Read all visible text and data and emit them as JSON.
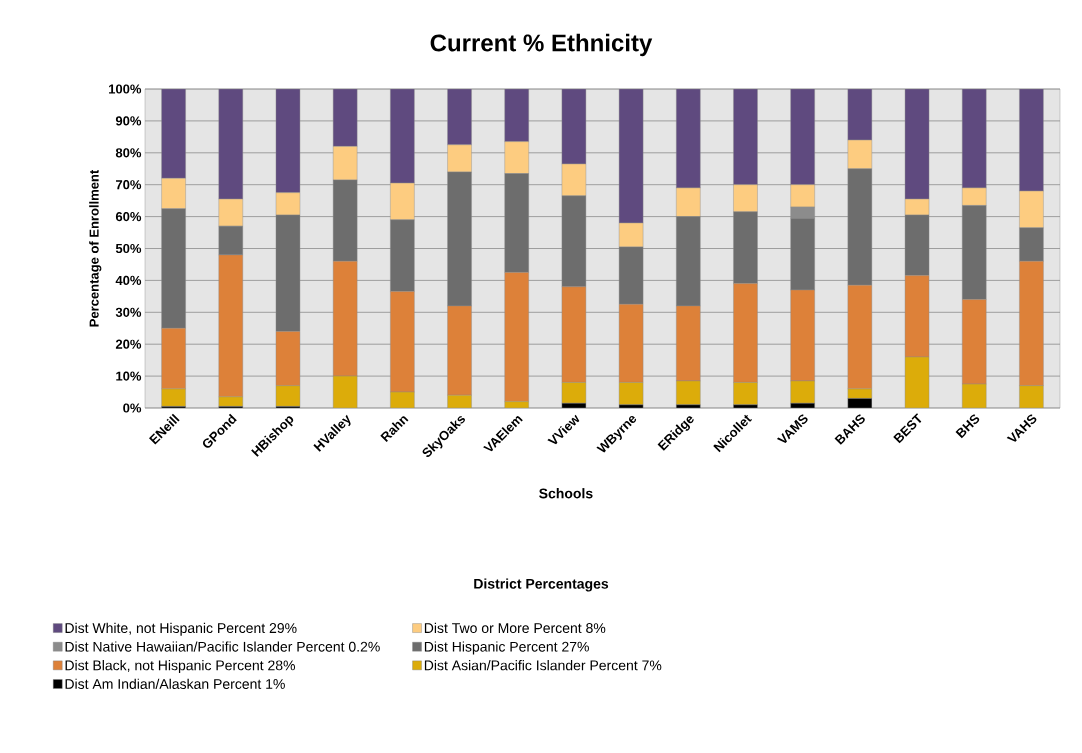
{
  "chart_data": {
    "type": "bar",
    "stacked": true,
    "title": "Current % Ethnicity",
    "xlabel": "Schools",
    "ylabel": "Percentage of Enrollment",
    "legend_title": "District Percentages",
    "categories": [
      "ENeill",
      "GPond",
      "HBishop",
      "HValley",
      "Rahn",
      "SkyOaks",
      "VAElem",
      "VView",
      "WByrne",
      "ERidge",
      "Nicollet",
      "VAMS",
      "BAHS",
      "BEST",
      "BHS",
      "VAHS"
    ],
    "series": [
      {
        "name": "Dist Am Indian/Alaskan Percent 1%",
        "color": "#000000",
        "values": [
          0.5,
          0.5,
          0.5,
          0,
          0,
          0,
          0,
          1.5,
          1,
          1,
          1,
          1.5,
          3,
          0,
          0,
          0
        ]
      },
      {
        "name": "Dist Asian/Pacific Islander Percent 7%",
        "color": "#dcac0a",
        "values": [
          5.5,
          3,
          6.5,
          10,
          5,
          4,
          2,
          6.5,
          7,
          7.5,
          7,
          7,
          3,
          16,
          7.5,
          7
        ]
      },
      {
        "name": "Dist Black, not Hispanic Percent 28%",
        "color": "#dd8139",
        "values": [
          19,
          44.5,
          17,
          36,
          31.5,
          28,
          40.5,
          30,
          24.5,
          23.5,
          31,
          28.5,
          32.5,
          25.5,
          26.5,
          39
        ]
      },
      {
        "name": "Dist Hispanic Percent 27%",
        "color": "#6d6d6d",
        "values": [
          37.5,
          9,
          36.5,
          25.5,
          22.5,
          42,
          31,
          28.5,
          18,
          28,
          22.5,
          22.5,
          36.5,
          19,
          29.5,
          10.5
        ]
      },
      {
        "name": "Dist Native Hawaiian/Pacific Islander Percent 0.2%",
        "color": "#8c8c8c",
        "values": [
          0,
          0,
          0,
          0,
          0,
          0,
          0,
          0,
          0,
          0,
          0,
          3.5,
          0,
          0,
          0,
          0
        ]
      },
      {
        "name": "Dist Two or More Percent 8%",
        "color": "#fdcc80",
        "values": [
          9.5,
          8.5,
          7,
          10.5,
          11.5,
          8.5,
          10,
          10,
          7.5,
          9,
          8.5,
          7,
          9,
          5,
          5.5,
          11.5
        ]
      },
      {
        "name": "Dist White, not Hispanic Percent 29%",
        "color": "#5f4a7f",
        "values": [
          28,
          34.5,
          32.5,
          18,
          29.5,
          17.5,
          16.5,
          23.5,
          42,
          31,
          30,
          30,
          16,
          34.5,
          31,
          32
        ]
      }
    ],
    "ylim": [
      0,
      100
    ],
    "yticks": [
      {
        "value": 0,
        "label": "0%"
      },
      {
        "value": 10,
        "label": "10%"
      },
      {
        "value": 20,
        "label": "20%"
      },
      {
        "value": 30,
        "label": "30%"
      },
      {
        "value": 40,
        "label": "40%"
      },
      {
        "value": 50,
        "label": "50%"
      },
      {
        "value": 60,
        "label": "60%"
      },
      {
        "value": 70,
        "label": "70%"
      },
      {
        "value": 80,
        "label": "80%"
      },
      {
        "value": 90,
        "label": "90%"
      },
      {
        "value": 100,
        "label": "100%"
      }
    ],
    "grid": "y",
    "legend": "bottom"
  }
}
